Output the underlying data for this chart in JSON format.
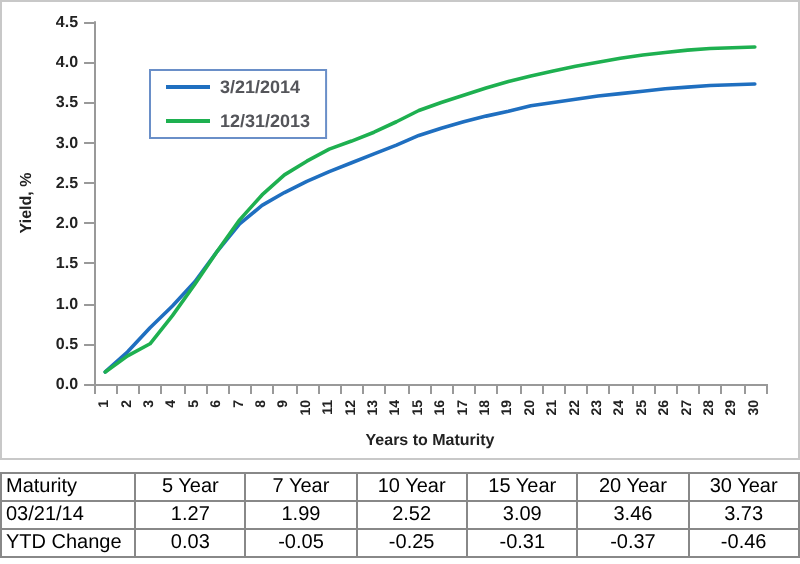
{
  "chart_data": [
    {
      "type": "line",
      "xlabel": "Years to Maturity",
      "ylabel": "Yield, %",
      "categories": [
        "1",
        "2",
        "3",
        "4",
        "5",
        "6",
        "7",
        "8",
        "9",
        "10",
        "11",
        "12",
        "13",
        "14",
        "15",
        "16",
        "17",
        "18",
        "19",
        "20",
        "21",
        "22",
        "23",
        "24",
        "25",
        "26",
        "27",
        "28",
        "29",
        "30"
      ],
      "series": [
        {
          "name": "3/21/2014",
          "color": "#1f6fc0",
          "values": [
            0.15,
            0.4,
            0.7,
            0.97,
            1.27,
            1.65,
            1.99,
            2.22,
            2.38,
            2.52,
            2.64,
            2.75,
            2.86,
            2.97,
            3.09,
            3.18,
            3.26,
            3.33,
            3.39,
            3.46,
            3.5,
            3.54,
            3.58,
            3.61,
            3.64,
            3.67,
            3.69,
            3.71,
            3.72,
            3.73
          ]
        },
        {
          "name": "12/31/2013",
          "color": "#1eb050",
          "values": [
            0.15,
            0.35,
            0.5,
            0.85,
            1.24,
            1.65,
            2.04,
            2.35,
            2.6,
            2.77,
            2.92,
            3.02,
            3.13,
            3.26,
            3.4,
            3.5,
            3.59,
            3.68,
            3.76,
            3.83,
            3.89,
            3.95,
            4.0,
            4.05,
            4.09,
            4.12,
            4.15,
            4.17,
            4.18,
            4.19
          ]
        }
      ],
      "ylim": [
        0,
        4.5
      ],
      "yticks": [
        {
          "value": 0,
          "label": "0.0"
        },
        {
          "value": 0.5,
          "label": "0.5"
        },
        {
          "value": 1,
          "label": "1.0"
        },
        {
          "value": 1.5,
          "label": "1.5"
        },
        {
          "value": 2,
          "label": "2.0"
        },
        {
          "value": 2.5,
          "label": "2.5"
        },
        {
          "value": 3,
          "label": "3.0"
        },
        {
          "value": 3.5,
          "label": "3.5"
        },
        {
          "value": 4,
          "label": "4.0"
        },
        {
          "value": 4.5,
          "label": "4.5"
        }
      ],
      "grid": false,
      "legend": "top left",
      "marker": "none",
      "line_style": "solid"
    },
    {
      "type": "other",
      "annotations": [
        "Maturity",
        "5 Year",
        "7 Year",
        "10 Year",
        "15 Year",
        "20 Year",
        "30 Year",
        "03/21/14",
        "1.27",
        "1.99",
        "2.52",
        "3.09",
        "3.46",
        "3.73",
        "YTD Change",
        "0.03",
        "-0.05",
        "-0.25",
        "-0.31",
        "-0.37",
        "-0.46"
      ]
    }
  ]
}
